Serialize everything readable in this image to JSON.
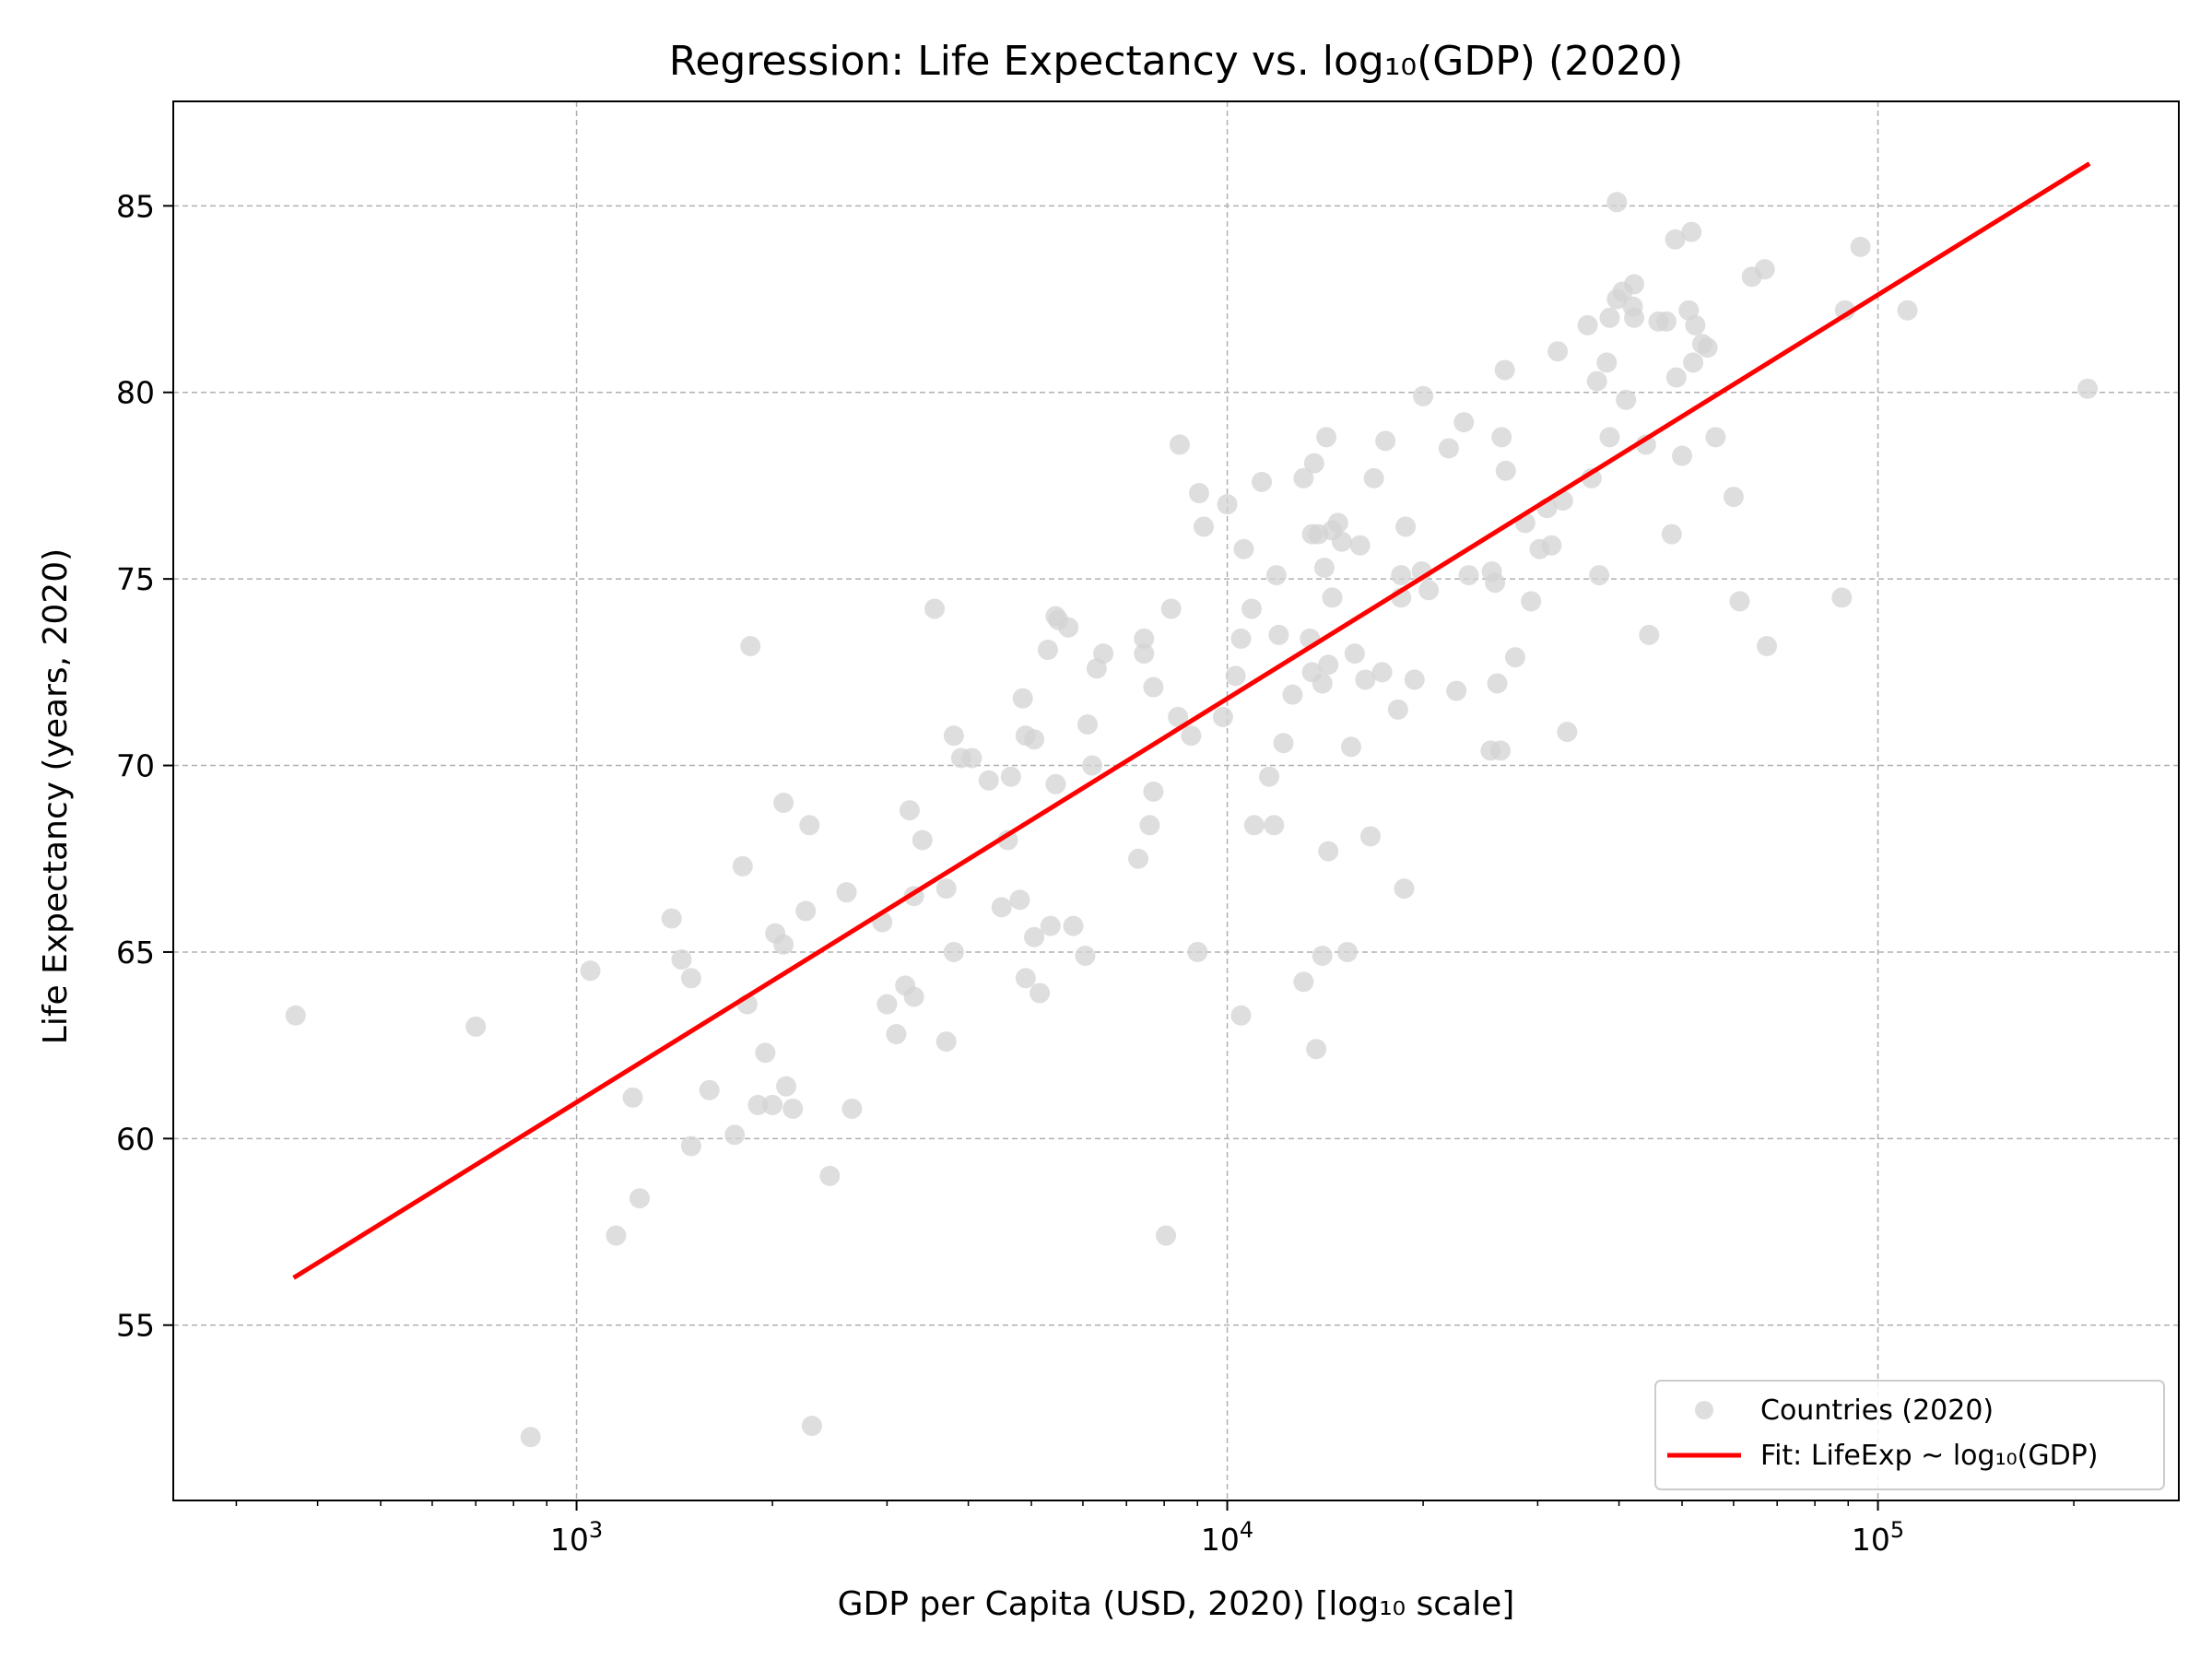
{
  "chart_data": {
    "type": "scatter",
    "title": "Regression: Life Expectancy vs. log₁₀(GDP) (2020)",
    "xlabel": "GDP per Capita (USD, 2020) [log₁₀ scale]",
    "ylabel": "Life Expectancy (years, 2020)",
    "x_scale": "log",
    "xlim": [
      240,
      290000
    ],
    "ylim": [
      50.3,
      87.8
    ],
    "x_ticks": [
      {
        "value": 1000,
        "base": "10",
        "exp": "3"
      },
      {
        "value": 10000,
        "base": "10",
        "exp": "4"
      },
      {
        "value": 100000,
        "base": "10",
        "exp": "5"
      }
    ],
    "y_ticks": [
      55,
      60,
      65,
      70,
      75,
      80,
      85
    ],
    "grid": true,
    "legend_position": "lower-right",
    "colors": {
      "points": "#d3d3d3",
      "fit": "#ff0000"
    },
    "series": [
      {
        "name": "Countries (2020)",
        "kind": "scatter",
        "points": [
          [
            370,
            63.3
          ],
          [
            700,
            63.0
          ],
          [
            850,
            52.0
          ],
          [
            1050,
            64.5
          ],
          [
            1150,
            57.4
          ],
          [
            1220,
            61.1
          ],
          [
            1250,
            58.4
          ],
          [
            1400,
            65.9
          ],
          [
            1450,
            64.8
          ],
          [
            1500,
            64.3
          ],
          [
            1500,
            59.8
          ],
          [
            1600,
            61.3
          ],
          [
            1750,
            60.1
          ],
          [
            1800,
            67.3
          ],
          [
            1850,
            73.2
          ],
          [
            1830,
            63.6
          ],
          [
            1900,
            60.9
          ],
          [
            1950,
            62.3
          ],
          [
            2000,
            60.9
          ],
          [
            2020,
            65.5
          ],
          [
            2080,
            65.2
          ],
          [
            2080,
            69.0
          ],
          [
            2100,
            61.4
          ],
          [
            2150,
            60.8
          ],
          [
            2250,
            66.1
          ],
          [
            2280,
            68.4
          ],
          [
            2300,
            52.3
          ],
          [
            2450,
            59.0
          ],
          [
            2600,
            66.6
          ],
          [
            2650,
            60.8
          ],
          [
            2950,
            65.8
          ],
          [
            3000,
            63.6
          ],
          [
            3100,
            62.8
          ],
          [
            3200,
            64.1
          ],
          [
            3250,
            68.8
          ],
          [
            3300,
            63.8
          ],
          [
            3300,
            66.5
          ],
          [
            3400,
            68.0
          ],
          [
            3550,
            74.2
          ],
          [
            3700,
            66.7
          ],
          [
            3700,
            62.6
          ],
          [
            3800,
            65.0
          ],
          [
            3800,
            70.8
          ],
          [
            3900,
            70.2
          ],
          [
            4050,
            70.2
          ],
          [
            4300,
            69.6
          ],
          [
            4500,
            66.2
          ],
          [
            4600,
            68.0
          ],
          [
            4650,
            69.7
          ],
          [
            4800,
            66.4
          ],
          [
            4850,
            71.8
          ],
          [
            4900,
            70.8
          ],
          [
            4900,
            64.3
          ],
          [
            5050,
            70.7
          ],
          [
            5050,
            65.4
          ],
          [
            5150,
            63.9
          ],
          [
            5300,
            73.1
          ],
          [
            5350,
            65.7
          ],
          [
            5450,
            69.5
          ],
          [
            5500,
            73.9
          ],
          [
            5450,
            74.0
          ],
          [
            5700,
            73.7
          ],
          [
            5800,
            65.7
          ],
          [
            6050,
            64.9
          ],
          [
            6100,
            71.1
          ],
          [
            6200,
            70.0
          ],
          [
            6300,
            72.6
          ],
          [
            6450,
            73.0
          ],
          [
            7300,
            67.5
          ],
          [
            7450,
            73.4
          ],
          [
            7450,
            73.0
          ],
          [
            7600,
            68.4
          ],
          [
            7700,
            72.1
          ],
          [
            7700,
            69.3
          ],
          [
            8050,
            57.4
          ],
          [
            8200,
            74.2
          ],
          [
            8400,
            71.3
          ],
          [
            8450,
            78.6
          ],
          [
            8800,
            70.8
          ],
          [
            9000,
            65.0
          ],
          [
            9050,
            77.3
          ],
          [
            9200,
            76.4
          ],
          [
            9850,
            71.3
          ],
          [
            10000,
            77.0
          ],
          [
            10300,
            72.4
          ],
          [
            10500,
            63.3
          ],
          [
            10500,
            73.4
          ],
          [
            10600,
            75.8
          ],
          [
            10900,
            74.2
          ],
          [
            11000,
            68.4
          ],
          [
            11300,
            77.6
          ],
          [
            11600,
            69.7
          ],
          [
            11800,
            68.4
          ],
          [
            11900,
            75.1
          ],
          [
            12000,
            73.5
          ],
          [
            12200,
            70.6
          ],
          [
            12600,
            71.9
          ],
          [
            13100,
            64.2
          ],
          [
            13100,
            77.7
          ],
          [
            13400,
            73.4
          ],
          [
            13500,
            72.5
          ],
          [
            13500,
            76.2
          ],
          [
            13600,
            78.1
          ],
          [
            13700,
            62.4
          ],
          [
            13800,
            76.2
          ],
          [
            14000,
            64.9
          ],
          [
            14000,
            72.2
          ],
          [
            14100,
            75.3
          ],
          [
            14200,
            78.8
          ],
          [
            14300,
            67.7
          ],
          [
            14300,
            72.7
          ],
          [
            14500,
            74.5
          ],
          [
            14500,
            76.3
          ],
          [
            14800,
            76.5
          ],
          [
            15000,
            76.0
          ],
          [
            15300,
            65.0
          ],
          [
            15500,
            70.5
          ],
          [
            15700,
            73.0
          ],
          [
            16000,
            75.9
          ],
          [
            16300,
            72.3
          ],
          [
            16600,
            68.1
          ],
          [
            16800,
            77.7
          ],
          [
            17300,
            72.5
          ],
          [
            17500,
            78.7
          ],
          [
            18300,
            71.5
          ],
          [
            18500,
            75.1
          ],
          [
            18500,
            74.5
          ],
          [
            18700,
            66.7
          ],
          [
            18800,
            76.4
          ],
          [
            19400,
            72.3
          ],
          [
            19900,
            75.2
          ],
          [
            20000,
            79.9
          ],
          [
            20400,
            74.7
          ],
          [
            21900,
            78.5
          ],
          [
            22500,
            72.0
          ],
          [
            23100,
            79.2
          ],
          [
            23500,
            75.1
          ],
          [
            25400,
            70.4
          ],
          [
            25500,
            75.2
          ],
          [
            25800,
            74.9
          ],
          [
            26000,
            72.2
          ],
          [
            26300,
            70.4
          ],
          [
            26400,
            78.8
          ],
          [
            26700,
            80.6
          ],
          [
            26800,
            77.9
          ],
          [
            27700,
            72.9
          ],
          [
            28700,
            76.5
          ],
          [
            29300,
            74.4
          ],
          [
            30200,
            75.8
          ],
          [
            31000,
            76.9
          ],
          [
            31500,
            75.9
          ],
          [
            32200,
            81.1
          ],
          [
            32800,
            77.1
          ],
          [
            33300,
            70.9
          ],
          [
            35800,
            81.8
          ],
          [
            36300,
            77.7
          ],
          [
            37000,
            80.3
          ],
          [
            37300,
            75.1
          ],
          [
            38300,
            80.8
          ],
          [
            38700,
            78.8
          ],
          [
            38700,
            82.0
          ],
          [
            39700,
            82.5
          ],
          [
            39700,
            85.1
          ],
          [
            40500,
            82.7
          ],
          [
            41000,
            79.8
          ],
          [
            42000,
            82.3
          ],
          [
            42200,
            82.9
          ],
          [
            42200,
            82.0
          ],
          [
            44000,
            78.6
          ],
          [
            44500,
            73.5
          ],
          [
            46000,
            81.9
          ],
          [
            47300,
            81.9
          ],
          [
            48200,
            76.2
          ],
          [
            48800,
            84.1
          ],
          [
            49000,
            80.4
          ],
          [
            50000,
            78.3
          ],
          [
            51200,
            82.2
          ],
          [
            51700,
            84.3
          ],
          [
            52000,
            80.8
          ],
          [
            52400,
            81.8
          ],
          [
            53700,
            81.3
          ],
          [
            54700,
            81.2
          ],
          [
            56300,
            78.8
          ],
          [
            60000,
            77.2
          ],
          [
            61300,
            74.4
          ],
          [
            64000,
            83.1
          ],
          [
            67000,
            83.3
          ],
          [
            67500,
            73.2
          ],
          [
            88000,
            74.5
          ],
          [
            89000,
            82.2
          ],
          [
            94000,
            83.9
          ],
          [
            111000,
            82.2
          ],
          [
            210000,
            80.1
          ]
        ]
      },
      {
        "name": "Fit: LifeExp ~ log₁₀(GDP)",
        "kind": "line",
        "points": [
          [
            370,
            56.3
          ],
          [
            210000,
            86.1
          ]
        ]
      }
    ]
  }
}
